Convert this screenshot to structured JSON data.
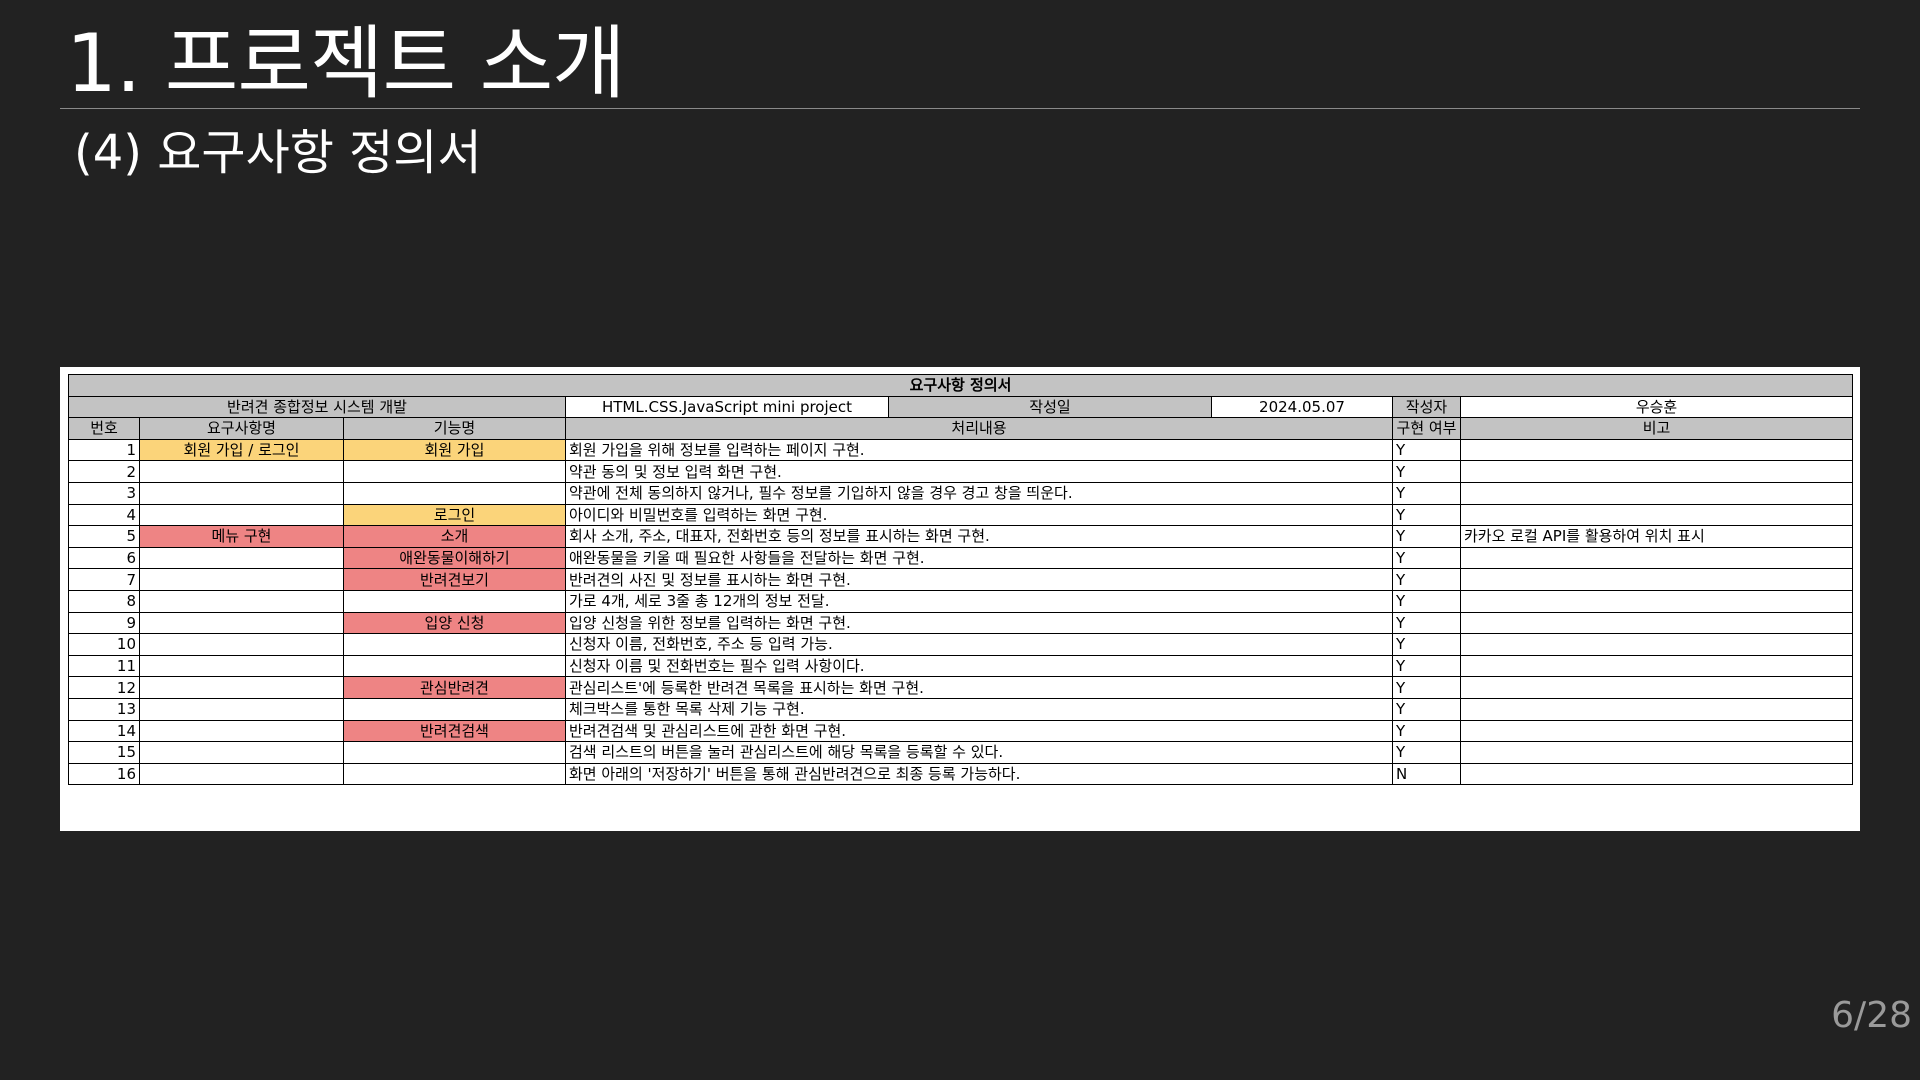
{
  "slide": {
    "title": "1. 프로젝트 소개",
    "subtitle": "(4) 요구사항 정의서",
    "page_number": "6/28"
  },
  "document": {
    "title": "요구사항 정의서",
    "info": {
      "project_name": "반려견 종합정보 시스템 개발",
      "project_desc": "HTML.CSS.JavaScript mini project",
      "date_label": "작성일",
      "date_value": "2024.05.07",
      "author_label": "작성자",
      "author_value": "우승훈"
    },
    "headers": {
      "no": "번호",
      "requirement": "요구사항명",
      "feature": "기능명",
      "process": "처리내용",
      "implemented": "구현 여부",
      "note": "비고"
    },
    "colors": {
      "header_grey": "#c3c3c3",
      "highlight_yellow": "#fbd47a",
      "highlight_red": "#ee8484"
    },
    "rows": [
      {
        "no": "1",
        "requirement": "회원 가입 / 로그인",
        "feature": "회원 가입",
        "process": "회원 가입을 위해 정보를 입력하는 페이지 구현.",
        "implemented": "Y",
        "note": ""
      },
      {
        "no": "2",
        "requirement": "",
        "feature": "",
        "process": "약관 동의 및 정보 입력 화면 구현.",
        "implemented": "Y",
        "note": ""
      },
      {
        "no": "3",
        "requirement": "",
        "feature": "",
        "process": "약관에 전체 동의하지 않거나, 필수 정보를 기입하지 않을 경우 경고 창을 띄운다.",
        "implemented": "Y",
        "note": ""
      },
      {
        "no": "4",
        "requirement": "",
        "feature": "로그인",
        "process": "아이디와 비밀번호를 입력하는 화면 구현.",
        "implemented": "Y",
        "note": ""
      },
      {
        "no": "5",
        "requirement": "메뉴 구현",
        "feature": "소개",
        "process": "회사 소개, 주소, 대표자, 전화번호 등의 정보를 표시하는 화면 구현.",
        "implemented": "Y",
        "note": "카카오 로컬 API를 활용하여 위치 표시"
      },
      {
        "no": "6",
        "requirement": "",
        "feature": "애완동물이해하기",
        "process": "애완동물을 키울 때 필요한 사항들을 전달하는 화면 구현.",
        "implemented": "Y",
        "note": ""
      },
      {
        "no": "7",
        "requirement": "",
        "feature": "반려견보기",
        "process": "반려견의 사진 및 정보를 표시하는 화면 구현.",
        "implemented": "Y",
        "note": ""
      },
      {
        "no": "8",
        "requirement": "",
        "feature": "",
        "process": "가로 4개, 세로 3줄 총 12개의 정보 전달.",
        "implemented": "Y",
        "note": ""
      },
      {
        "no": "9",
        "requirement": "",
        "feature": "입양 신청",
        "process": "입양 신청을 위한 정보를 입력하는 화면 구현.",
        "implemented": "Y",
        "note": ""
      },
      {
        "no": "10",
        "requirement": "",
        "feature": "",
        "process": "신청자 이름, 전화번호, 주소 등 입력 가능.",
        "implemented": "Y",
        "note": ""
      },
      {
        "no": "11",
        "requirement": "",
        "feature": "",
        "process": "신청자 이름 및 전화번호는 필수 입력 사항이다.",
        "implemented": "Y",
        "note": ""
      },
      {
        "no": "12",
        "requirement": "",
        "feature": "관심반려견",
        "process": "관심리스트'에 등록한 반려견 목록을 표시하는 화면 구현.",
        "implemented": "Y",
        "note": ""
      },
      {
        "no": "13",
        "requirement": "",
        "feature": "",
        "process": "체크박스를 통한 목록 삭제 기능 구현.",
        "implemented": "Y",
        "note": ""
      },
      {
        "no": "14",
        "requirement": "",
        "feature": "반려견검색",
        "process": "반려견검색 및 관심리스트에 관한 화면 구현.",
        "implemented": "Y",
        "note": ""
      },
      {
        "no": "15",
        "requirement": "",
        "feature": "",
        "process": "검색 리스트의 버튼을 눌러 관심리스트에 해당 목록을 등록할 수 있다.",
        "implemented": "Y",
        "note": ""
      },
      {
        "no": "16",
        "requirement": "",
        "feature": "",
        "process": "화면 아래의 '저장하기' 버튼을 통해 관심반려견으로 최종 등록 가능하다.",
        "implemented": "N",
        "note": ""
      }
    ]
  }
}
